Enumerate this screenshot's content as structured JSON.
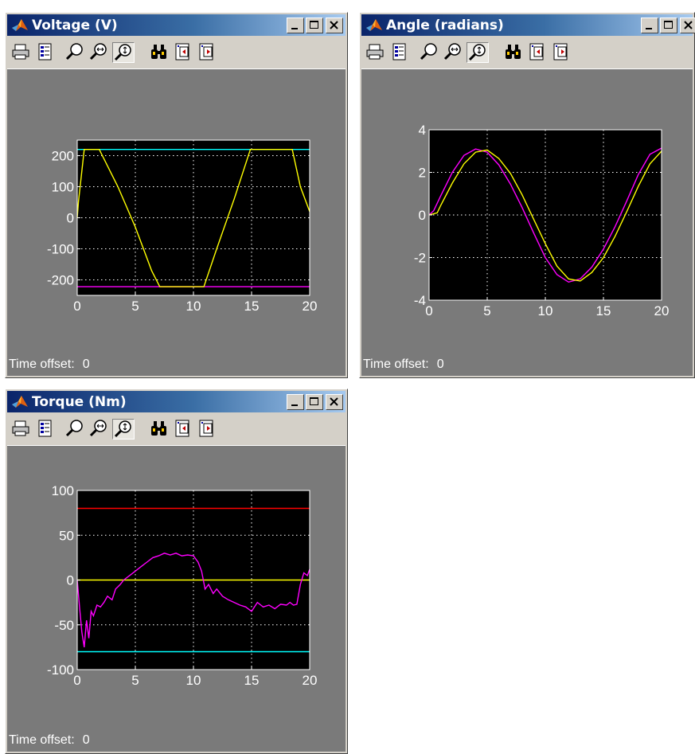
{
  "windows": [
    {
      "id": "voltage",
      "title": "Voltage (V)",
      "time_offset_label": "Time offset:",
      "time_offset_value": "0",
      "y_ticks": [
        "200",
        "100",
        "0",
        "-100",
        "-200"
      ],
      "x_ticks": [
        "0",
        "5",
        "10",
        "15",
        "20"
      ]
    },
    {
      "id": "angle",
      "title": "Angle (radians)",
      "time_offset_label": "Time offset:",
      "time_offset_value": "0",
      "y_ticks": [
        "4",
        "2",
        "0",
        "-2",
        "-4"
      ],
      "x_ticks": [
        "0",
        "5",
        "10",
        "15",
        "20"
      ]
    },
    {
      "id": "torque",
      "title": "Torque (Nm)",
      "time_offset_label": "Time offset:",
      "time_offset_value": "0",
      "y_ticks": [
        "100",
        "50",
        "0",
        "-50",
        "-100"
      ],
      "x_ticks": [
        "0",
        "5",
        "10",
        "15",
        "20"
      ]
    }
  ],
  "toolbar_icons": [
    "print-icon",
    "parameters-icon",
    "zoom-icon",
    "zoom-x-icon",
    "zoom-y-icon",
    "autoscale-binoculars-icon",
    "save-axes-icon",
    "restore-axes-icon"
  ],
  "colors": {
    "yellow": "#ffff00",
    "magenta": "#ff00ff",
    "cyan": "#00ffff",
    "red": "#ff0000",
    "title_start": "#0a246a",
    "plot_bg": "#000000"
  },
  "chart_data": [
    {
      "type": "line",
      "title": "Voltage (V)",
      "xlim": [
        0,
        20
      ],
      "ylim": [
        -250,
        250
      ],
      "grid": true,
      "series": [
        {
          "color": "#00ffff",
          "x": [
            0,
            20
          ],
          "y": [
            220,
            220
          ]
        },
        {
          "color": "#ff00ff",
          "x": [
            0,
            20
          ],
          "y": [
            -222,
            -222
          ]
        },
        {
          "color": "#ffff00",
          "x": [
            0,
            0.1,
            0.6,
            1.9,
            3.5,
            5.0,
            6.4,
            7.1,
            7.6,
            10.3,
            10.9,
            12.0,
            13.5,
            14.9,
            18.2,
            18.5,
            19.2,
            20
          ],
          "y": [
            0,
            50,
            220,
            220,
            100,
            -30,
            -170,
            -222,
            -222,
            -222,
            -222,
            -100,
            60,
            220,
            220,
            220,
            100,
            20
          ]
        }
      ]
    },
    {
      "type": "line",
      "title": "Angle (radians)",
      "xlim": [
        0,
        20
      ],
      "ylim": [
        -4,
        4
      ],
      "grid": true,
      "series": [
        {
          "color": "#ff00ff",
          "x": [
            0,
            0.4,
            1,
            2,
            3,
            4,
            5,
            6,
            7,
            8,
            9,
            10,
            11,
            12,
            13,
            14,
            15,
            16,
            17,
            18,
            19,
            20
          ],
          "y": [
            0,
            0.2,
            0.9,
            2.0,
            2.8,
            3.1,
            2.95,
            2.35,
            1.45,
            0.35,
            -0.85,
            -2.0,
            -2.8,
            -3.15,
            -3.0,
            -2.45,
            -1.6,
            -0.55,
            0.65,
            1.9,
            2.85,
            3.14
          ]
        },
        {
          "color": "#ffff00",
          "x": [
            0,
            0.7,
            1,
            2,
            3,
            4,
            5,
            6,
            7,
            8,
            9,
            10,
            11,
            12,
            13,
            14,
            15,
            16,
            17,
            18,
            19,
            20
          ],
          "y": [
            0,
            0.1,
            0.45,
            1.5,
            2.4,
            2.95,
            3.05,
            2.65,
            1.95,
            0.95,
            -0.2,
            -1.35,
            -2.4,
            -3.0,
            -3.1,
            -2.7,
            -2.0,
            -1.0,
            0.15,
            1.35,
            2.4,
            3.0
          ]
        }
      ]
    },
    {
      "type": "line",
      "title": "Torque (Nm)",
      "xlim": [
        0,
        20
      ],
      "ylim": [
        -100,
        100
      ],
      "grid": true,
      "series": [
        {
          "color": "#ff0000",
          "x": [
            0,
            20
          ],
          "y": [
            80,
            80
          ]
        },
        {
          "color": "#00ffff",
          "x": [
            0,
            20
          ],
          "y": [
            -80,
            -80
          ]
        },
        {
          "color": "#ffff00",
          "x": [
            0,
            20
          ],
          "y": [
            0,
            0
          ]
        },
        {
          "color": "#ff00ff",
          "x": [
            0,
            0.2,
            0.4,
            0.6,
            0.8,
            1.0,
            1.2,
            1.4,
            1.7,
            2.0,
            2.3,
            2.6,
            3.0,
            3.3,
            3.7,
            4.0,
            4.5,
            5.0,
            5.5,
            6.0,
            6.5,
            7.0,
            7.5,
            8.0,
            8.5,
            9.0,
            9.5,
            10.0,
            10.4,
            10.7,
            11.0,
            11.3,
            11.7,
            12.0,
            12.5,
            13.0,
            13.5,
            14.0,
            14.5,
            15.0,
            15.5,
            16.0,
            16.5,
            17.0,
            17.5,
            18.0,
            18.3,
            18.6,
            18.9,
            19.2,
            19.5,
            19.8,
            20
          ],
          "y": [
            0,
            -30,
            -58,
            -75,
            -45,
            -65,
            -35,
            -40,
            -28,
            -30,
            -25,
            -18,
            -22,
            -10,
            -5,
            0,
            5,
            10,
            15,
            20,
            25,
            27,
            30,
            28,
            30,
            27,
            28,
            27,
            20,
            10,
            -10,
            -5,
            -15,
            -10,
            -18,
            -22,
            -25,
            -28,
            -30,
            -35,
            -25,
            -30,
            -28,
            -32,
            -27,
            -28,
            -25,
            -28,
            -27,
            -5,
            8,
            5,
            12
          ]
        }
      ]
    }
  ]
}
